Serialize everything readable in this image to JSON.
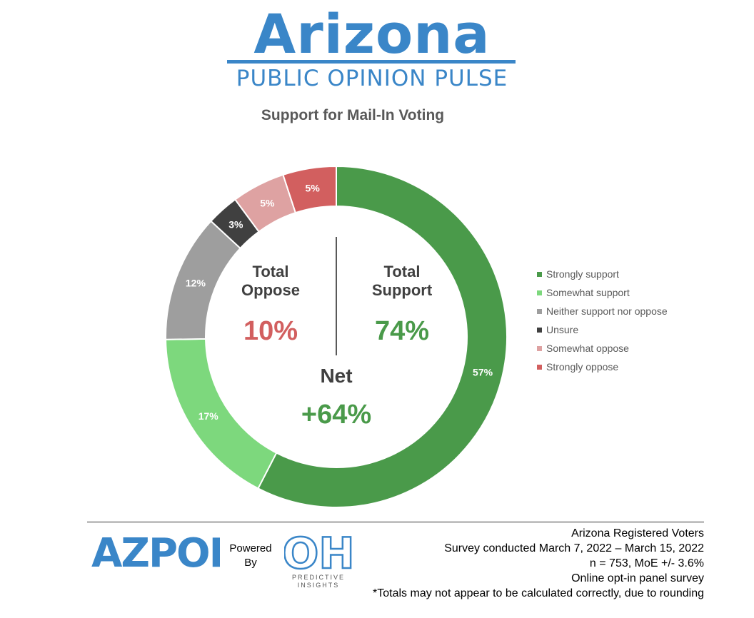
{
  "header": {
    "brand_title": "Arizona",
    "brand_subtitle": "PUBLIC OPINION PULSE",
    "brand_color": "#3a86c8"
  },
  "chart_data": {
    "type": "pie",
    "subtype": "donut",
    "title": "Support for Mail-In Voting",
    "series": [
      {
        "name": "Strongly support",
        "value": 57,
        "label": "57%",
        "color": "#4a9a4a"
      },
      {
        "name": "Somewhat support",
        "value": 17,
        "label": "17%",
        "color": "#7dd87d"
      },
      {
        "name": "Neither support nor oppose",
        "value": 12,
        "label": "12%",
        "color": "#9e9e9e"
      },
      {
        "name": "Unsure",
        "value": 3,
        "label": "3%",
        "color": "#404040"
      },
      {
        "name": "Somewhat oppose",
        "value": 5,
        "label": "5%",
        "color": "#dea2a2"
      },
      {
        "name": "Strongly oppose",
        "value": 5,
        "label": "5%",
        "color": "#d25f5f"
      }
    ],
    "legend_position": "right",
    "center": {
      "oppose_label_line1": "Total",
      "oppose_label_line2": "Oppose",
      "oppose_value": "10%",
      "oppose_color": "#d25f5f",
      "support_label_line1": "Total",
      "support_label_line2": "Support",
      "support_value": "74%",
      "support_color": "#4a9a4a",
      "net_label": "Net",
      "net_value": "+64%",
      "net_color": "#4a9a4a"
    }
  },
  "footer": {
    "azpop_logo_text": "AZPOP",
    "powered_by_line1": "Powered",
    "powered_by_line2": "By",
    "oh_logo_text": "OH",
    "oh_caption_line1": "PREDICTIVE",
    "oh_caption_line2": "INSIGHTS",
    "notes": [
      "Arizona Registered Voters",
      "Survey conducted March 7, 2022 – March 15, 2022",
      "n = 753, MoE +/- 3.6%",
      "Online opt-in panel survey",
      "*Totals may not appear to be calculated correctly, due to rounding"
    ]
  }
}
